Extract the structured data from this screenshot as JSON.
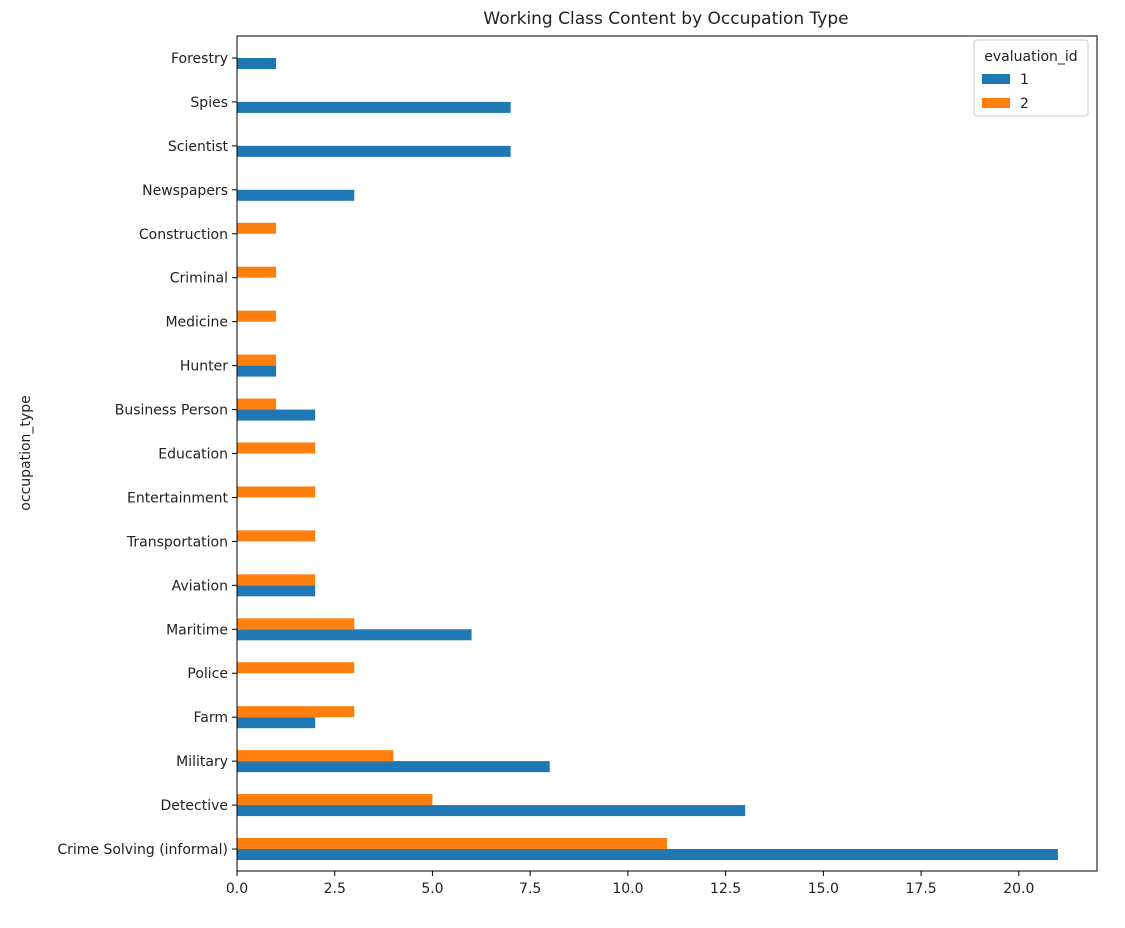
{
  "chart_data": {
    "type": "bar",
    "orientation": "horizontal",
    "title": "Working Class Content by Occupation Type",
    "ylabel": "occupation_type",
    "xlabel": "",
    "xlim": [
      0,
      22
    ],
    "xticks": [
      0.0,
      2.5,
      5.0,
      7.5,
      10.0,
      12.5,
      15.0,
      17.5,
      20.0
    ],
    "xtick_labels": [
      "0.0",
      "2.5",
      "5.0",
      "7.5",
      "10.0",
      "12.5",
      "15.0",
      "17.5",
      "20.0"
    ],
    "grid": false,
    "legend": {
      "title": "evaluation_id",
      "placement": "top-right"
    },
    "categories": [
      "Crime Solving (informal)",
      "Detective",
      "Military",
      "Farm",
      "Police",
      "Maritime",
      "Aviation",
      "Transportation",
      "Entertainment",
      "Education",
      "Business Person",
      "Hunter",
      "Medicine",
      "Criminal",
      "Construction",
      "Newspapers",
      "Scientist",
      "Spies",
      "Forestry"
    ],
    "series": [
      {
        "name": "1",
        "color": "#1f77b4",
        "values": [
          21,
          13,
          8,
          2,
          0,
          6,
          2,
          0,
          0,
          0,
          2,
          1,
          0,
          0,
          0,
          3,
          7,
          7,
          1
        ]
      },
      {
        "name": "2",
        "color": "#ff7f0e",
        "values": [
          11,
          5,
          4,
          3,
          3,
          3,
          2,
          2,
          2,
          2,
          1,
          1,
          1,
          1,
          1,
          0,
          0,
          0,
          0
        ]
      }
    ]
  }
}
